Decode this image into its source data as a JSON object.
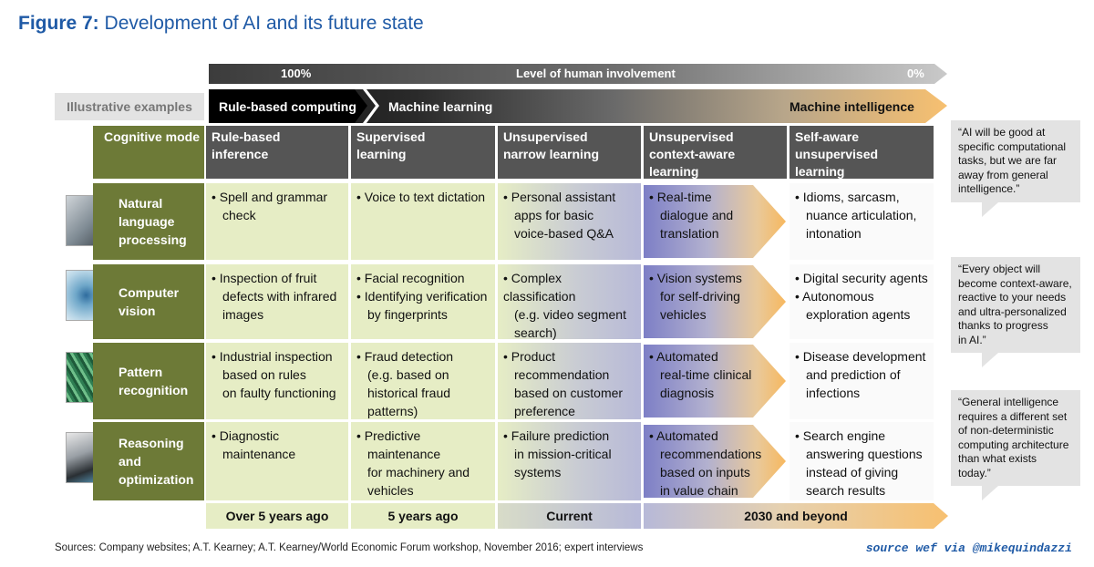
{
  "title": {
    "prefix": "Figure 7:",
    "text": "Development of AI and its future state"
  },
  "involvement": {
    "label": "Level of human involvement",
    "left": "100%",
    "right": "0%"
  },
  "illustrative_examples": "Illustrative examples",
  "phases": [
    "Rule-based computing",
    "Machine learning",
    "Machine intelligence"
  ],
  "cognitive_mode_label": "Cognitive mode",
  "columns": [
    {
      "l1": "Rule-based",
      "l2": "inference"
    },
    {
      "l1": "Supervised",
      "l2": "learning"
    },
    {
      "l1": "Unsupervised",
      "l2": "narrow learning"
    },
    {
      "l1": "Unsupervised",
      "l2": "context-aware learning"
    },
    {
      "l1": "Self-aware",
      "l2": "unsupervised learning"
    }
  ],
  "rows": [
    {
      "label": [
        "Natural",
        "language",
        "processing"
      ],
      "cells": [
        [
          "• Spell and grammar",
          "check"
        ],
        [
          "• Voice to text dictation"
        ],
        [
          "• Personal assistant",
          "apps for basic",
          "voice-based Q&A"
        ],
        [
          "• Real-time",
          "dialogue and",
          "translation"
        ],
        [
          "• Idioms, sarcasm,",
          "nuance articulation,",
          "intonation"
        ]
      ]
    },
    {
      "label": [
        "Computer",
        "vision"
      ],
      "cells": [
        [
          "• Inspection of fruit",
          "defects with infrared",
          "images"
        ],
        [
          "• Facial recognition",
          "• Identifying verification",
          "by fingerprints"
        ],
        [
          "• Complex classification",
          "(e.g. video segment",
          "search)"
        ],
        [
          "• Vision systems",
          "for self-driving",
          "vehicles"
        ],
        [
          "• Digital security agents",
          "• Autonomous",
          "exploration agents"
        ]
      ]
    },
    {
      "label": [
        "Pattern",
        "recognition"
      ],
      "cells": [
        [
          "• Industrial inspection",
          "based on rules",
          "on faulty functioning"
        ],
        [
          "• Fraud detection",
          "(e.g. based on",
          "historical fraud",
          "patterns)"
        ],
        [
          "• Product",
          "recommendation",
          "based on customer",
          "preference"
        ],
        [
          "• Automated",
          "real-time clinical",
          "diagnosis"
        ],
        [
          "• Disease development",
          "and prediction of",
          "infections"
        ]
      ]
    },
    {
      "label": [
        "Reasoning",
        "and",
        "optimization"
      ],
      "cells": [
        [
          "• Diagnostic",
          "maintenance"
        ],
        [
          "• Predictive",
          "maintenance",
          "for machinery and",
          "vehicles"
        ],
        [
          "• Failure prediction",
          "in mission-critical",
          "systems"
        ],
        [
          "• Automated",
          "recommendations",
          "based on inputs",
          "in value chain"
        ],
        [
          "• Search engine",
          "answering questions",
          "instead of giving",
          "search results"
        ]
      ]
    }
  ],
  "timeline": [
    "Over 5 years ago",
    "5 years ago",
    "Current",
    "2030 and beyond"
  ],
  "quotes": [
    [
      "“AI will be good at",
      "specific computational",
      "tasks, but we are far",
      "away from general",
      "intelligence.”"
    ],
    [
      "“Every object will",
      "become context-aware,",
      "reactive to your needs",
      "and ultra-personalized",
      "thanks to progress",
      "in AI.”"
    ],
    [
      "“General intelligence",
      "requires a different set",
      "of non-deterministic",
      "computing architecture",
      "than what exists",
      "today.”"
    ]
  ],
  "sources": "Sources: Company websites; A.T. Kearney; A.T. Kearney/World Economic Forum workshop, November 2016; expert interviews",
  "credit": "source wef via @mikequindazzi",
  "colors": {
    "title_blue": "#1f5aa6",
    "olive": "#6d7a37",
    "pale_green": "#e6edc5",
    "header_grey": "#555555",
    "orange": "#f7b85f",
    "purple": "#7d7fc6"
  }
}
